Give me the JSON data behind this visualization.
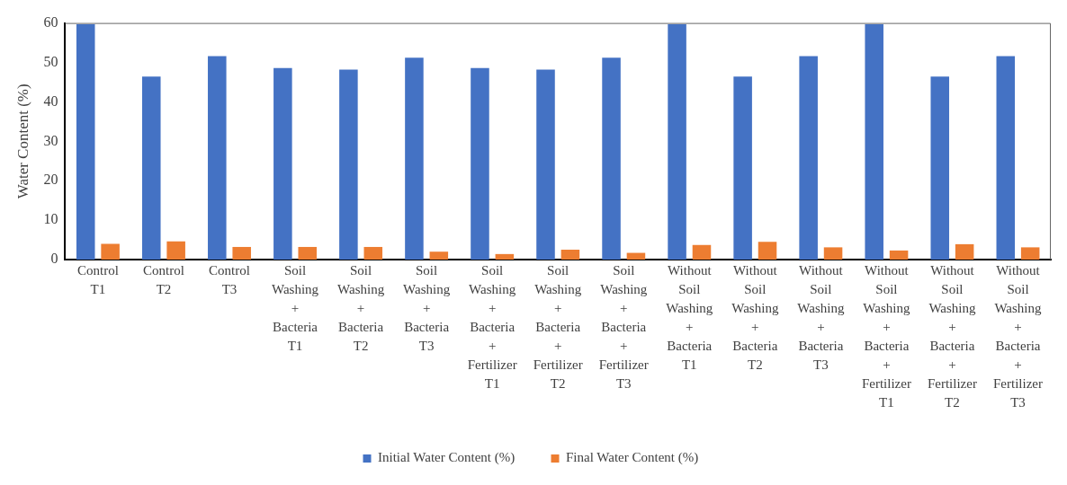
{
  "chart_data": {
    "type": "bar",
    "ylabel": "Water Content (%)",
    "categories": [
      "Control T1",
      "Control T2",
      "Control T3",
      "Soil Washing + Bacteria T1",
      "Soil Washing + Bacteria T2",
      "Soil Washing + Bacteria T3",
      "Soil Washing + Bacteria + Fertilizer T1",
      "Soil Washing + Bacteria + Fertilizer T2",
      "Soil Washing + Bacteria + Fertilizer T3",
      "Without Soil Washing + Bacteria T1",
      "Without Soil Washing + Bacteria T2",
      "Without Soil Washing + Bacteria T3",
      "Without Soil Washing + Bacteria + Fertilizer T1",
      "Without Soil Washing + Bacteria + Fertilizer T2",
      "Without Soil Washing + Bacteria + Fertilizer T3"
    ],
    "series": [
      {
        "name": "Initial Water Content (%)",
        "color": "#4472c4",
        "values": [
          59.7,
          46.4,
          51.6,
          48.6,
          48.2,
          51.2,
          48.6,
          48.2,
          51.2,
          59.7,
          46.4,
          51.6,
          59.7,
          46.4,
          51.6
        ]
      },
      {
        "name": "Final Water Content (%)",
        "color": "#ed7d31",
        "values": [
          4.0,
          4.6,
          3.2,
          3.2,
          3.2,
          2.0,
          1.4,
          2.5,
          1.7,
          3.7,
          4.5,
          3.1,
          2.3,
          3.9,
          3.1
        ]
      }
    ],
    "ylim": [
      0,
      60
    ],
    "yticks": [
      0,
      10,
      20,
      30,
      40,
      50,
      60
    ],
    "grid": false,
    "legend": "bottom"
  }
}
